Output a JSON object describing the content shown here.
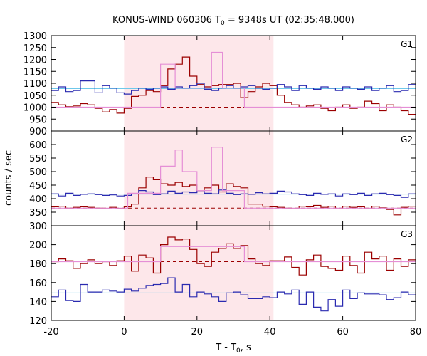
{
  "title": {
    "prefix": "KONUS-WIND 060306 T",
    "sub": "0",
    "suffix": " = 9348s UT (02:35:48.000)"
  },
  "xlabel": {
    "prefix": "T - T",
    "sub": "0",
    "suffix": ", s"
  },
  "ylabel": "counts / sec",
  "colors": {
    "red": "#9b0000",
    "blue": "#2a2ab0",
    "pink": "#e58fd6",
    "cyan": "#6fc8ea",
    "shade": "#fde7ea"
  },
  "chart_data": {
    "type": "line",
    "x_range": [
      -20,
      80
    ],
    "x_ticks": [
      -20,
      0,
      20,
      40,
      60,
      80
    ],
    "shaded_interval": [
      0,
      41
    ],
    "bin_edges": [
      -20,
      -18,
      -16,
      -14,
      -12,
      -10,
      -8,
      -6,
      -4,
      -2,
      0,
      2,
      4,
      6,
      8,
      10,
      12,
      14,
      16,
      18,
      20,
      22,
      24,
      26,
      28,
      30,
      32,
      34,
      36,
      38,
      40,
      42,
      44,
      46,
      48,
      50,
      52,
      54,
      56,
      58,
      60,
      62,
      64,
      66,
      68,
      70,
      72,
      74,
      76,
      78,
      80
    ],
    "panels": [
      {
        "name": "G1",
        "ylim": [
          900,
          1300
        ],
        "y_ticks": [
          900,
          950,
          1000,
          1050,
          1100,
          1150,
          1200,
          1250,
          1300
        ],
        "red_background": 1000,
        "blue_background": 1078,
        "series": [
          {
            "name": "red",
            "values": [
              1020,
              1010,
              1002,
              1005,
              1015,
              1010,
              995,
              980,
              990,
              975,
              995,
              1045,
              1050,
              1070,
              1065,
              1090,
              1160,
              1180,
              1210,
              1130,
              1095,
              1085,
              1090,
              1095,
              1095,
              1100,
              1040,
              1065,
              1085,
              1100,
              1090,
              1050,
              1020,
              1010,
              1000,
              1005,
              1010,
              995,
              985,
              1000,
              1010,
              995,
              1000,
              1025,
              1015,
              985,
              1010,
              1000,
              985,
              970
            ]
          },
          {
            "name": "blue",
            "values": [
              1070,
              1085,
              1065,
              1070,
              1110,
              1110,
              1060,
              1090,
              1080,
              1060,
              1055,
              1070,
              1080,
              1075,
              1080,
              1085,
              1075,
              1085,
              1080,
              1090,
              1100,
              1075,
              1070,
              1080,
              1090,
              1080,
              1085,
              1090,
              1080,
              1075,
              1080,
              1095,
              1085,
              1070,
              1090,
              1080,
              1075,
              1085,
              1080,
              1070,
              1085,
              1080,
              1075,
              1085,
              1070,
              1080,
              1090,
              1065,
              1070,
              1095
            ]
          },
          {
            "name": "pink",
            "segments": [
              [
                -20,
                0,
                1000
              ],
              [
                0,
                10,
                1000
              ],
              [
                10,
                14,
                1180
              ],
              [
                14,
                24,
                1080
              ],
              [
                24,
                27,
                1230
              ],
              [
                27,
                33,
                1080
              ],
              [
                33,
                80,
                1000
              ]
            ]
          }
        ]
      },
      {
        "name": "G2",
        "ylim": [
          300,
          650
        ],
        "y_ticks": [
          300,
          350,
          400,
          450,
          500,
          550,
          600
        ],
        "red_background": 365,
        "blue_background": 417,
        "series": [
          {
            "name": "red",
            "values": [
              370,
              372,
              365,
              368,
              370,
              368,
              365,
              362,
              368,
              364,
              370,
              380,
              440,
              480,
              470,
              455,
              450,
              460,
              445,
              450,
              430,
              440,
              450,
              425,
              455,
              445,
              440,
              380,
              380,
              372,
              370,
              368,
              365,
              362,
              372,
              370,
              375,
              368,
              372,
              362,
              372,
              368,
              370,
              362,
              372,
              366,
              360,
              340,
              368,
              372
            ]
          },
          {
            "name": "blue",
            "values": [
              418,
              410,
              420,
              412,
              416,
              418,
              415,
              412,
              414,
              410,
              412,
              418,
              430,
              425,
              415,
              418,
              428,
              420,
              425,
              422,
              430,
              420,
              418,
              432,
              420,
              415,
              418,
              416,
              422,
              418,
              420,
              428,
              425,
              418,
              415,
              412,
              420,
              416,
              418,
              410,
              418,
              415,
              420,
              412,
              418,
              420,
              415,
              412,
              405,
              418
            ]
          },
          {
            "name": "pink",
            "segments": [
              [
                -20,
                1,
                365
              ],
              [
                1,
                10,
                420
              ],
              [
                10,
                14,
                520
              ],
              [
                14,
                16,
                580
              ],
              [
                16,
                20,
                500
              ],
              [
                20,
                24,
                430
              ],
              [
                24,
                27,
                590
              ],
              [
                27,
                33,
                430
              ],
              [
                33,
                80,
                365
              ]
            ]
          }
        ]
      },
      {
        "name": "G3",
        "ylim": [
          120,
          220
        ],
        "y_ticks": [
          120,
          140,
          160,
          180,
          200
        ],
        "red_background": 182,
        "blue_background": 149,
        "series": [
          {
            "name": "red",
            "values": [
              182,
              185,
              183,
              175,
              180,
              184,
              180,
              182,
              178,
              183,
              188,
              172,
              189,
              186,
              170,
              200,
              208,
              205,
              206,
              195,
              180,
              177,
              192,
              196,
              201,
              196,
              199,
              185,
              180,
              178,
              183,
              183,
              187,
              176,
              168,
              184,
              189,
              177,
              175,
              173,
              188,
              178,
              170,
              192,
              185,
              188,
              173,
              185,
              177,
              184
            ]
          },
          {
            "name": "blue",
            "values": [
              145,
              152,
              141,
              140,
              158,
              150,
              150,
              152,
              151,
              150,
              153,
              151,
              154,
              157,
              158,
              159,
              165,
              150,
              158,
              145,
              150,
              148,
              145,
              140,
              149,
              150,
              147,
              143,
              143,
              145,
              144,
              150,
              148,
              152,
              137,
              150,
              134,
              130,
              142,
              135,
              152,
              143,
              149,
              148,
              148,
              147,
              142,
              144,
              150,
              147
            ]
          },
          {
            "name": "pink",
            "segments": [
              [
                -20,
                10,
                182
              ],
              [
                10,
                33,
                198
              ],
              [
                33,
                80,
                182
              ]
            ]
          }
        ]
      }
    ]
  }
}
